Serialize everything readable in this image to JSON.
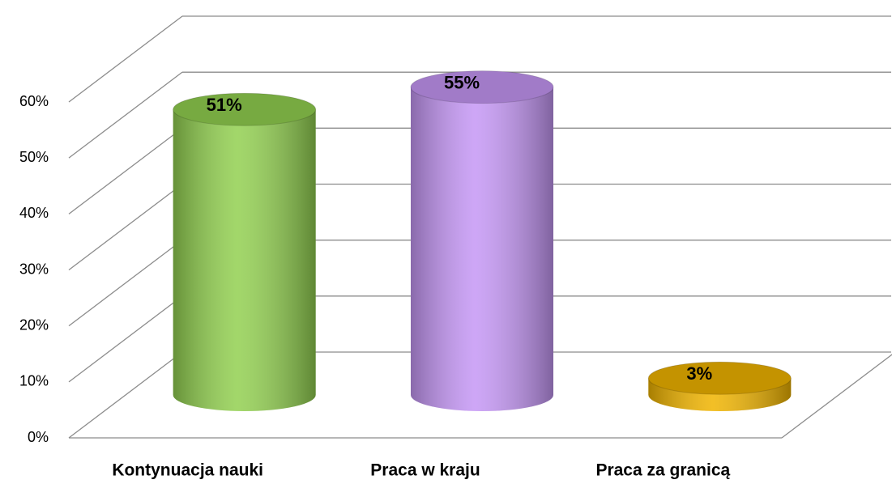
{
  "chart_data": {
    "type": "bar",
    "categories": [
      "Kontynuacja nauki",
      "Praca w kraju",
      "Praca za granicą"
    ],
    "values": [
      51,
      55,
      3
    ],
    "value_labels": [
      "51%",
      "55%",
      "3%"
    ],
    "colors": [
      "#92d050",
      "#c597f5",
      "#f0b400"
    ],
    "ylim": [
      0,
      60
    ],
    "yticks": [
      {
        "value": 0,
        "label": "0%"
      },
      {
        "value": 10,
        "label": "10%"
      },
      {
        "value": 20,
        "label": "20%"
      },
      {
        "value": 30,
        "label": "30%"
      },
      {
        "value": 40,
        "label": "40%"
      },
      {
        "value": 50,
        "label": "50%"
      },
      {
        "value": 60,
        "label": "60%"
      }
    ],
    "grid": true
  }
}
